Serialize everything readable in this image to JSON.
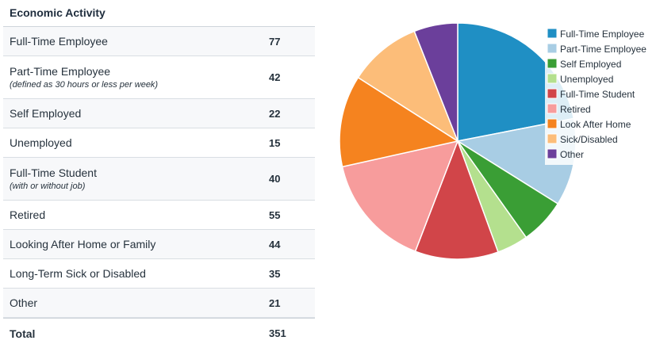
{
  "title": "Economic Activity",
  "rows": [
    {
      "label": "Full-Time Employee",
      "sub": "",
      "value": "77"
    },
    {
      "label": "Part-Time Employee",
      "sub": "(defined as 30 hours or less per week)",
      "value": "42"
    },
    {
      "label": "Self Employed",
      "sub": "",
      "value": "22"
    },
    {
      "label": "Unemployed",
      "sub": "",
      "value": "15"
    },
    {
      "label": "Full-Time Student",
      "sub": "(with or without job)",
      "value": "40"
    },
    {
      "label": "Retired",
      "sub": "",
      "value": "55"
    },
    {
      "label": "Looking After Home or Family",
      "sub": "",
      "value": "44"
    },
    {
      "label": "Long-Term Sick or Disabled",
      "sub": "",
      "value": "35"
    },
    {
      "label": "Other",
      "sub": "",
      "value": "21"
    }
  ],
  "total": {
    "label": "Total",
    "value": "351"
  },
  "chart_data": {
    "type": "pie",
    "categories": [
      "Full-Time Employee",
      "Part-Time Employee",
      "Self Employed",
      "Unemployed",
      "Full-Time Student",
      "Retired",
      "Look After Home",
      "Sick/Disabled",
      "Other"
    ],
    "values": [
      77,
      42,
      22,
      15,
      40,
      55,
      44,
      35,
      21
    ],
    "colors": [
      "#1f8fc4",
      "#a8cde4",
      "#3a9e35",
      "#b4e08e",
      "#d14549",
      "#f79c9c",
      "#f5831f",
      "#fcbd79",
      "#6b3f9b"
    ],
    "legend": "top-right",
    "start": "12 o'clock",
    "direction": "clockwise"
  }
}
